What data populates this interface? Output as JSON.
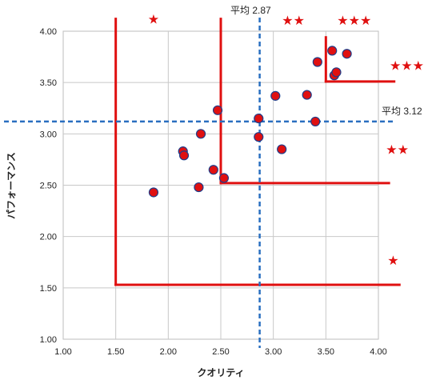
{
  "chart_data": {
    "type": "scatter",
    "xlabel": "クオリティ",
    "ylabel": "パフォーマンス",
    "xlim": [
      1.0,
      4.0
    ],
    "ylim": [
      1.0,
      4.0
    ],
    "x_ticks": [
      "1.00",
      "1.50",
      "2.00",
      "2.50",
      "3.00",
      "3.50",
      "4.00"
    ],
    "y_ticks": [
      "1.00",
      "1.50",
      "2.00",
      "2.50",
      "3.00",
      "3.50",
      "4.00"
    ],
    "grid": true,
    "point_color": "#e01010",
    "point_stroke": "#1f3d8a",
    "points": [
      {
        "x": 1.86,
        "y": 2.43
      },
      {
        "x": 2.14,
        "y": 2.83
      },
      {
        "x": 2.15,
        "y": 2.79
      },
      {
        "x": 2.29,
        "y": 2.48
      },
      {
        "x": 2.31,
        "y": 3.0
      },
      {
        "x": 2.43,
        "y": 2.65
      },
      {
        "x": 2.47,
        "y": 3.23
      },
      {
        "x": 2.53,
        "y": 2.57
      },
      {
        "x": 2.86,
        "y": 3.15
      },
      {
        "x": 2.86,
        "y": 2.97
      },
      {
        "x": 3.02,
        "y": 3.37
      },
      {
        "x": 3.08,
        "y": 2.85
      },
      {
        "x": 3.32,
        "y": 3.38
      },
      {
        "x": 3.4,
        "y": 3.12
      },
      {
        "x": 3.42,
        "y": 3.7
      },
      {
        "x": 3.56,
        "y": 3.81
      },
      {
        "x": 3.58,
        "y": 3.57
      },
      {
        "x": 3.6,
        "y": 3.6
      },
      {
        "x": 3.7,
        "y": 3.78
      }
    ],
    "averages": {
      "x": {
        "value": 2.87,
        "label": "平均 2.87"
      },
      "y": {
        "value": 3.12,
        "label": "平均 3.12"
      },
      "color": "#2a6fc0"
    },
    "threshold_lines": {
      "color": "#e01010",
      "segments": [
        {
          "x1": 1.5,
          "y1": 4.12,
          "x2": 1.5,
          "y2": 1.53
        },
        {
          "x1": 1.5,
          "y1": 1.53,
          "x2": 4.2,
          "y2": 1.53
        },
        {
          "x1": 2.5,
          "y1": 4.12,
          "x2": 2.5,
          "y2": 2.52
        },
        {
          "x1": 2.5,
          "y1": 2.52,
          "x2": 4.1,
          "y2": 2.52
        },
        {
          "x1": 3.5,
          "y1": 3.94,
          "x2": 3.5,
          "y2": 3.51
        },
        {
          "x1": 3.5,
          "y1": 3.51,
          "x2": 4.15,
          "y2": 3.51
        }
      ]
    },
    "star_labels": [
      {
        "text": "★",
        "x": 1.86,
        "y": 4.12
      },
      {
        "text": "★★",
        "x": 3.19,
        "y": 4.11
      },
      {
        "text": "★★★",
        "x": 3.77,
        "y": 4.11
      },
      {
        "text": "★★★",
        "x": 4.27,
        "y": 3.67
      },
      {
        "text": "★★",
        "x": 4.18,
        "y": 2.85
      },
      {
        "text": "★",
        "x": 4.14,
        "y": 1.77
      }
    ]
  }
}
